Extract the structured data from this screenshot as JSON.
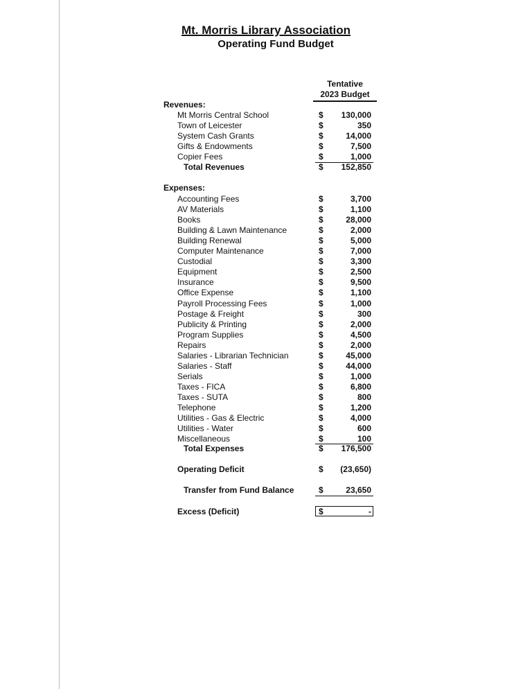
{
  "title": "Mt. Morris Library Association",
  "subtitle": "Operating Fund Budget",
  "column_header": {
    "line1": "Tentative",
    "line2": "2023 Budget"
  },
  "currency_symbol": "$",
  "revenues": {
    "heading": "Revenues:",
    "items": [
      {
        "label": "Mt Morris Central School",
        "amount": "130,000"
      },
      {
        "label": "Town of Leicester",
        "amount": "350"
      },
      {
        "label": "System Cash Grants",
        "amount": "14,000"
      },
      {
        "label": "Gifts & Endowments",
        "amount": "7,500"
      },
      {
        "label": "Copier Fees",
        "amount": "1,000"
      }
    ],
    "total": {
      "label": "Total Revenues",
      "amount": "152,850"
    }
  },
  "expenses": {
    "heading": "Expenses:",
    "items": [
      {
        "label": "Accounting Fees",
        "amount": "3,700"
      },
      {
        "label": "AV Materials",
        "amount": "1,100"
      },
      {
        "label": "Books",
        "amount": "28,000"
      },
      {
        "label": "Building & Lawn Maintenance",
        "amount": "2,000"
      },
      {
        "label": "Building Renewal",
        "amount": "5,000"
      },
      {
        "label": "Computer Maintenance",
        "amount": "7,000"
      },
      {
        "label": "Custodial",
        "amount": "3,300"
      },
      {
        "label": "Equipment",
        "amount": "2,500"
      },
      {
        "label": "Insurance",
        "amount": "9,500"
      },
      {
        "label": "Office Expense",
        "amount": "1,100"
      },
      {
        "label": "Payroll Processing Fees",
        "amount": "1,000"
      },
      {
        "label": "Postage & Freight",
        "amount": "300"
      },
      {
        "label": "Publicity & Printing",
        "amount": "2,000"
      },
      {
        "label": "Program Supplies",
        "amount": "4,500"
      },
      {
        "label": "Repairs",
        "amount": "2,000"
      },
      {
        "label": "Salaries - Librarian Technician",
        "amount": "45,000"
      },
      {
        "label": "Salaries - Staff",
        "amount": "44,000"
      },
      {
        "label": "Serials",
        "amount": "1,000"
      },
      {
        "label": "Taxes - FICA",
        "amount": "6,800"
      },
      {
        "label": "Taxes - SUTA",
        "amount": "800"
      },
      {
        "label": "Telephone",
        "amount": "1,200"
      },
      {
        "label": "Utilities - Gas & Electric",
        "amount": "4,000"
      },
      {
        "label": "Utilities - Water",
        "amount": "600"
      },
      {
        "label": "Miscellaneous",
        "amount": "100"
      }
    ],
    "total": {
      "label": "Total Expenses",
      "amount": "176,500"
    }
  },
  "operating_deficit": {
    "label": "Operating Deficit",
    "amount": "(23,650)"
  },
  "transfer": {
    "label": "Transfer from Fund Balance",
    "amount": "23,650"
  },
  "excess": {
    "label": "Excess (Deficit)",
    "amount": "-"
  }
}
